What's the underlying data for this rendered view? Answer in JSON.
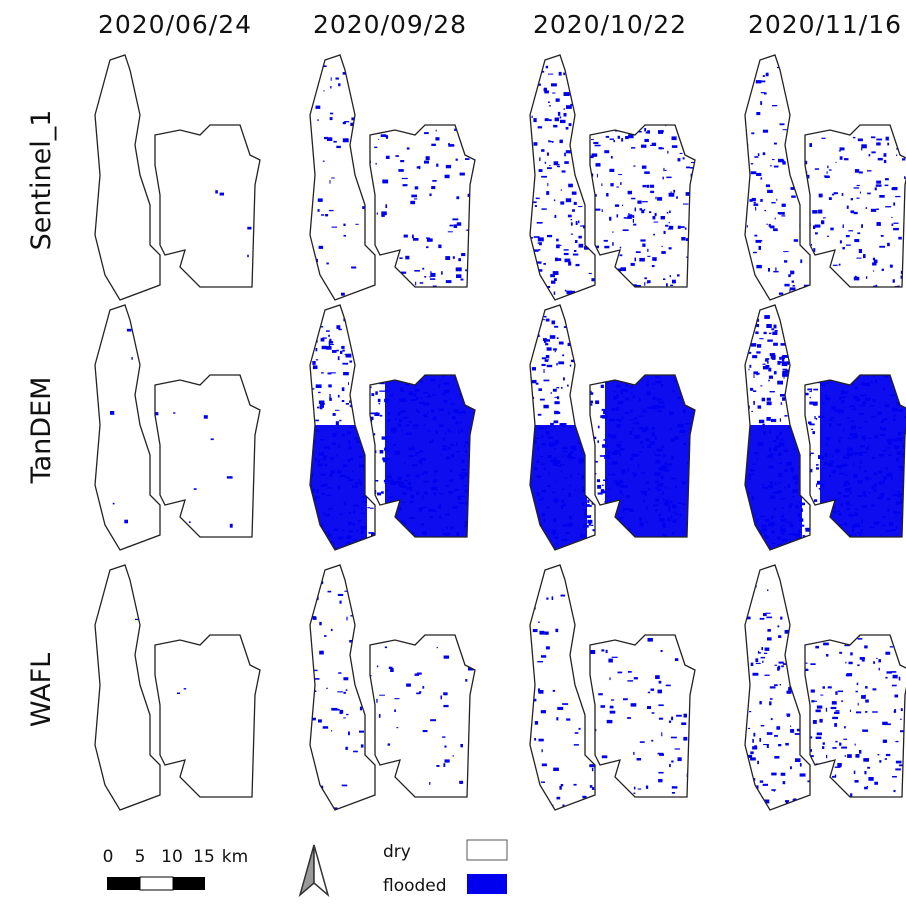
{
  "column_dates": [
    "2020/06/24",
    "2020/09/28",
    "2020/10/22",
    "2020/11/16"
  ],
  "row_labels": [
    "Sentinel_1",
    "TanDEM",
    "WAFL"
  ],
  "scale_bar": {
    "labels": [
      "0",
      "5",
      "10",
      "15"
    ],
    "unit": "km"
  },
  "legend": [
    {
      "label": "dry",
      "color": "#ffffff"
    },
    {
      "label": "flooded",
      "color": "#0000ee"
    }
  ]
}
